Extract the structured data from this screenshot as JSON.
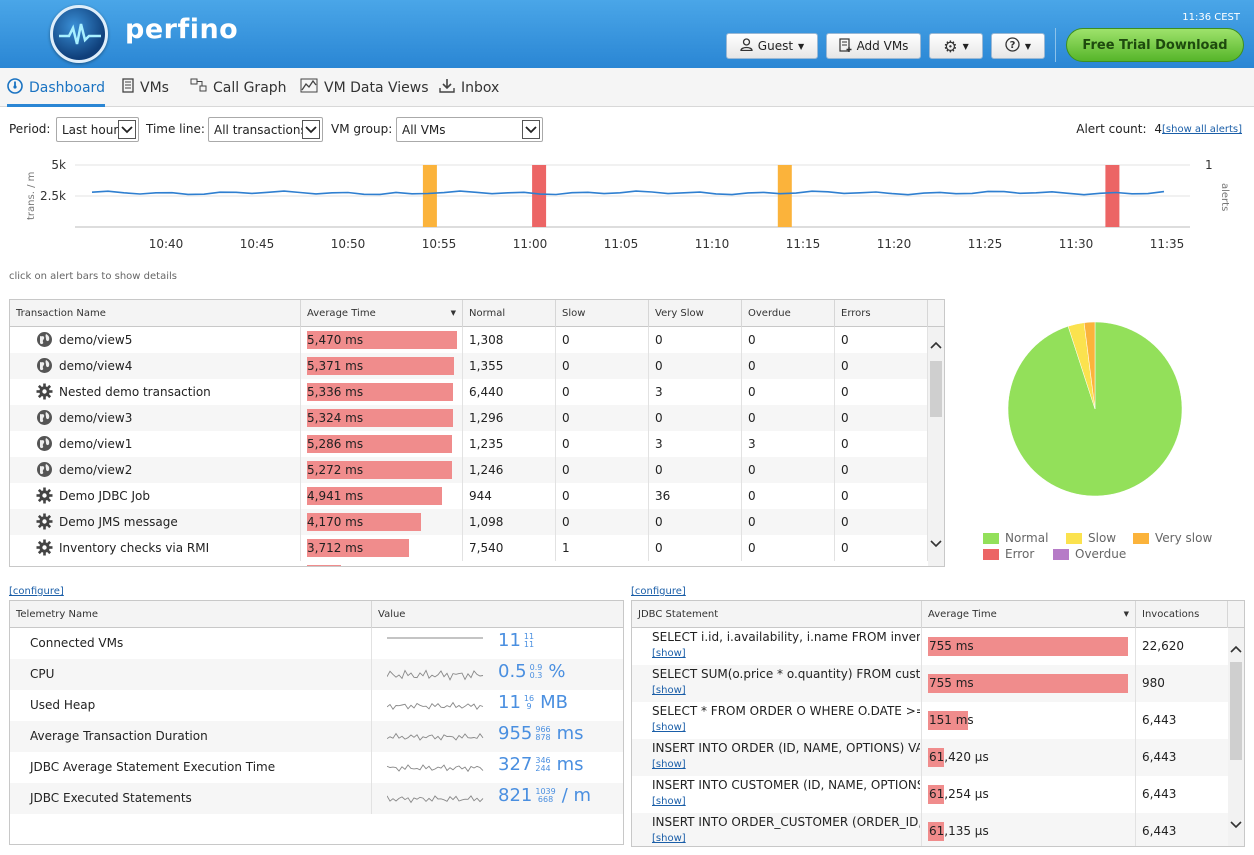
{
  "header": {
    "brand": "perfino",
    "clock": "11:36 CEST",
    "guest_label": "Guest",
    "add_vms_label": "Add VMs",
    "trial_label": "Free Trial Download"
  },
  "nav": {
    "tabs": [
      {
        "label": "Dashboard",
        "icon": "dashboard-icon"
      },
      {
        "label": "VMs",
        "icon": "vm-icon"
      },
      {
        "label": "Call Graph",
        "icon": "call-graph-icon"
      },
      {
        "label": "VM Data Views",
        "icon": "chart-icon"
      },
      {
        "label": "Inbox",
        "icon": "download-icon"
      }
    ]
  },
  "filters": {
    "period_label": "Period:",
    "period_value": "Last hour",
    "timeline_label": "Time line:",
    "timeline_value": "All transactions",
    "vmgroup_label": "VM group:",
    "vmgroup_value": "All VMs",
    "alert_count_label": "Alert count:",
    "alert_count": "4",
    "show_all_alerts": "[show all alerts]"
  },
  "timeline": {
    "ylabel": "trans. / m",
    "yticks": [
      "5k",
      "2.5k"
    ],
    "right_ticks": [
      "1"
    ],
    "right_label": "alerts",
    "xticks": [
      "10:40",
      "10:45",
      "10:50",
      "10:55",
      "11:00",
      "11:05",
      "11:10",
      "11:15",
      "11:20",
      "11:25",
      "11:30",
      "11:35"
    ],
    "alerts": [
      {
        "time": "10:54:30",
        "color": "#fbb33b"
      },
      {
        "time": "11:00:30",
        "color": "#ec6565"
      },
      {
        "time": "11:14",
        "color": "#fbb33b"
      },
      {
        "time": "11:32",
        "color": "#ec6565"
      }
    ],
    "hint": "click on alert bars to show details"
  },
  "transactions": {
    "headers": [
      "Transaction Name",
      "Average Time",
      "Normal",
      "Slow",
      "Very Slow",
      "Overdue",
      "Errors"
    ],
    "rows": [
      {
        "icon": "globe-icon",
        "name": "demo/view5",
        "avg": "5,470 ms",
        "avg_ms": 5470,
        "normal": "1,308",
        "slow": "0",
        "very_slow": "0",
        "overdue": "0",
        "errors": "0"
      },
      {
        "icon": "globe-icon",
        "name": "demo/view4",
        "avg": "5,371 ms",
        "avg_ms": 5371,
        "normal": "1,355",
        "slow": "0",
        "very_slow": "0",
        "overdue": "0",
        "errors": "0"
      },
      {
        "icon": "gear-icon",
        "name": "Nested demo transaction",
        "avg": "5,336 ms",
        "avg_ms": 5336,
        "normal": "6,440",
        "slow": "0",
        "very_slow": "3",
        "overdue": "0",
        "errors": "0"
      },
      {
        "icon": "globe-icon",
        "name": "demo/view3",
        "avg": "5,324 ms",
        "avg_ms": 5324,
        "normal": "1,296",
        "slow": "0",
        "very_slow": "0",
        "overdue": "0",
        "errors": "0"
      },
      {
        "icon": "globe-icon",
        "name": "demo/view1",
        "avg": "5,286 ms",
        "avg_ms": 5286,
        "normal": "1,235",
        "slow": "0",
        "very_slow": "3",
        "overdue": "3",
        "errors": "0"
      },
      {
        "icon": "globe-icon",
        "name": "demo/view2",
        "avg": "5,272 ms",
        "avg_ms": 5272,
        "normal": "1,246",
        "slow": "0",
        "very_slow": "0",
        "overdue": "0",
        "errors": "0"
      },
      {
        "icon": "gear-icon",
        "name": "Demo JDBC Job",
        "avg": "4,941 ms",
        "avg_ms": 4941,
        "normal": "944",
        "slow": "0",
        "very_slow": "36",
        "overdue": "0",
        "errors": "0"
      },
      {
        "icon": "gear-icon",
        "name": "Demo JMS message",
        "avg": "4,170 ms",
        "avg_ms": 4170,
        "normal": "1,098",
        "slow": "0",
        "very_slow": "0",
        "overdue": "0",
        "errors": "0"
      },
      {
        "icon": "gear-icon",
        "name": "Inventory checks via RMI",
        "avg": "3,712 ms",
        "avg_ms": 3712,
        "normal": "7,540",
        "slow": "1",
        "very_slow": "0",
        "overdue": "0",
        "errors": "0"
      }
    ]
  },
  "pie": {
    "slices": [
      {
        "name": "Normal",
        "fraction": 0.95,
        "color": "#93e05a"
      },
      {
        "name": "Slow",
        "fraction": 0.03,
        "color": "#fbe24e"
      },
      {
        "name": "Very slow",
        "fraction": 0.02,
        "color": "#fbb33b"
      }
    ],
    "legend": [
      {
        "label": "Normal",
        "color": "#93e05a"
      },
      {
        "label": "Slow",
        "color": "#fbe24e"
      },
      {
        "label": "Very slow",
        "color": "#fbb33b"
      },
      {
        "label": "Error",
        "color": "#ec6565"
      },
      {
        "label": "Overdue",
        "color": "#b67bc7"
      }
    ]
  },
  "telemetry": {
    "configure": "[configure]",
    "headers": [
      "Telemetry Name",
      "Value"
    ],
    "rows": [
      {
        "name": "Connected VMs",
        "value": "11",
        "max": "11",
        "min": "11",
        "unit": ""
      },
      {
        "name": "CPU",
        "value": "0.5",
        "max": "0.9",
        "min": "0.3",
        "unit": "%"
      },
      {
        "name": "Used Heap",
        "value": "11",
        "max": "16",
        "min": "9",
        "unit": "MB"
      },
      {
        "name": "Average Transaction Duration",
        "value": "955",
        "max": "966",
        "min": "878",
        "unit": "ms"
      },
      {
        "name": "JDBC Average Statement Execution Time",
        "value": "327",
        "max": "346",
        "min": "244",
        "unit": "ms"
      },
      {
        "name": "JDBC Executed Statements",
        "value": "821",
        "max": "1039",
        "min": "668",
        "unit": "/ m"
      }
    ]
  },
  "jdbc": {
    "configure": "[configure]",
    "headers": [
      "JDBC Statement",
      "Average Time",
      "Invocations"
    ],
    "show_label": "[show]",
    "rows": [
      {
        "stmt": "SELECT i.id, i.availability, i.name FROM inventory",
        "avg": "755 ms",
        "fill": 1.0,
        "invocations": "22,620"
      },
      {
        "stmt": "SELECT SUM(o.price * o.quantity) FROM custome",
        "avg": "755 ms",
        "fill": 1.0,
        "invocations": "980"
      },
      {
        "stmt": "SELECT * FROM ORDER O WHERE O.DATE >= ?",
        "avg": "151 ms",
        "fill": 0.2,
        "invocations": "6,443"
      },
      {
        "stmt": "INSERT INTO ORDER (ID, NAME, OPTIONS) VALUI",
        "avg": "61,420 µs",
        "fill": 0.08,
        "invocations": "6,443"
      },
      {
        "stmt": "INSERT INTO CUSTOMER (ID, NAME, OPTIONS) V",
        "avg": "61,254 µs",
        "fill": 0.08,
        "invocations": "6,443"
      },
      {
        "stmt": "INSERT INTO ORDER_CUSTOMER (ORDER_ID, CU",
        "avg": "61,135 µs",
        "fill": 0.08,
        "invocations": "6,443"
      }
    ]
  }
}
